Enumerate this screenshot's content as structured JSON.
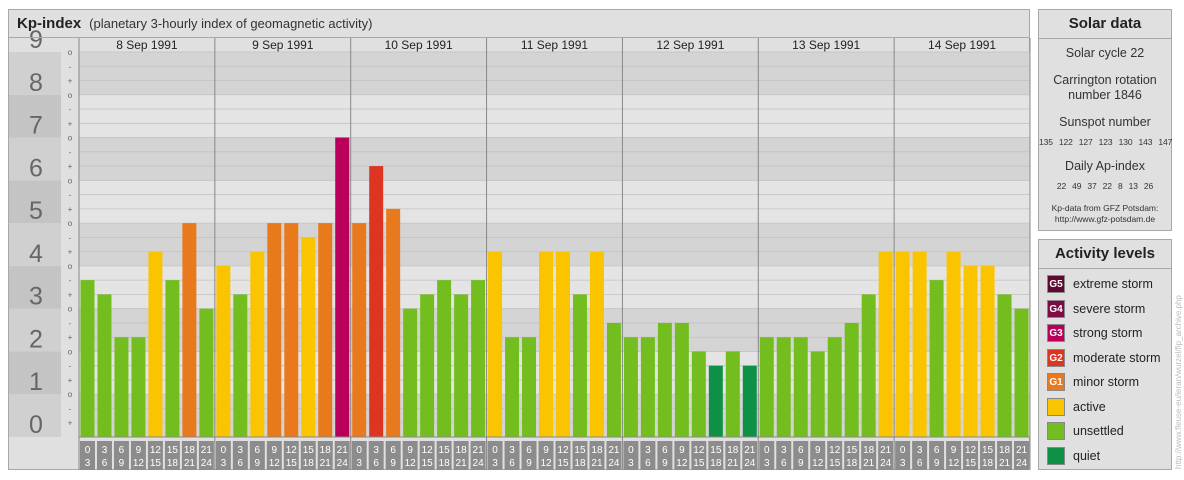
{
  "header": {
    "title": "Kp-index",
    "subtitle": "(planetary 3-hourly index of geomagnetic activity)"
  },
  "chart_data": {
    "type": "bar",
    "ylim": [
      0,
      9
    ],
    "y_tick_labels": [
      "0",
      "1",
      "2",
      "3",
      "4",
      "5",
      "6",
      "7",
      "8",
      "9"
    ],
    "minor_tick_labels": [
      "+",
      "-",
      "o"
    ],
    "days": [
      "8 Sep 1991",
      "9 Sep 1991",
      "10 Sep 1991",
      "11 Sep 1991",
      "12 Sep 1991",
      "13 Sep 1991",
      "14 Sep 1991"
    ],
    "intervals": [
      {
        "start": "0",
        "end": "3"
      },
      {
        "start": "3",
        "end": "6"
      },
      {
        "start": "6",
        "end": "9"
      },
      {
        "start": "9",
        "end": "12"
      },
      {
        "start": "12",
        "end": "15"
      },
      {
        "start": "15",
        "end": "18"
      },
      {
        "start": "18",
        "end": "21"
      },
      {
        "start": "21",
        "end": "24"
      }
    ],
    "values": [
      3.667,
      3.333,
      2.333,
      2.333,
      4.333,
      3.667,
      5.0,
      3.0,
      4.0,
      3.333,
      4.333,
      5.0,
      5.0,
      4.667,
      5.0,
      7.0,
      5.0,
      6.333,
      5.333,
      3.0,
      3.333,
      3.667,
      3.333,
      3.667,
      4.333,
      2.333,
      2.333,
      4.333,
      4.333,
      3.333,
      4.333,
      2.667,
      2.333,
      2.333,
      2.667,
      2.667,
      2.0,
      1.667,
      2.0,
      1.667,
      2.333,
      2.333,
      2.333,
      2.0,
      2.333,
      2.667,
      3.333,
      4.333,
      4.333,
      4.333,
      3.667,
      4.333,
      4.0,
      4.0,
      3.333,
      3.0
    ],
    "legend_placement": "right",
    "grid": true
  },
  "solar": {
    "title": "Solar data",
    "cycle": "Solar cycle 22",
    "carrington_line1": "Carrington rotation",
    "carrington_line2": "number 1846",
    "sunspot_title": "Sunspot number",
    "sunspot_values": [
      "135",
      "122",
      "127",
      "123",
      "130",
      "143",
      "147"
    ],
    "ap_title": "Daily Ap-index",
    "ap_values": [
      "22",
      "49",
      "37",
      "22",
      "8",
      "13",
      "26"
    ],
    "credit_line1": "Kp-data from GFZ Potsdam:",
    "credit_line2": "http://www.gfz-potsdam.de"
  },
  "activity": {
    "title": "Activity levels",
    "levels": [
      {
        "code": "G5",
        "label": "extreme storm",
        "color": "#5e0b2e"
      },
      {
        "code": "G4",
        "label": "severe storm",
        "color": "#7d0b46"
      },
      {
        "code": "G3",
        "label": "strong storm",
        "color": "#b8005b"
      },
      {
        "code": "G2",
        "label": "moderate storm",
        "color": "#dc3522"
      },
      {
        "code": "G1",
        "label": "minor storm",
        "color": "#e8791c"
      },
      {
        "code": "",
        "label": "active",
        "color": "#fac400"
      },
      {
        "code": "",
        "label": "unsettled",
        "color": "#73be1e"
      },
      {
        "code": "",
        "label": "quiet",
        "color": "#0e9146"
      }
    ]
  },
  "vertical_credit": "http://www.fleuse-eu/leran/wurzel/fip_archive.php"
}
